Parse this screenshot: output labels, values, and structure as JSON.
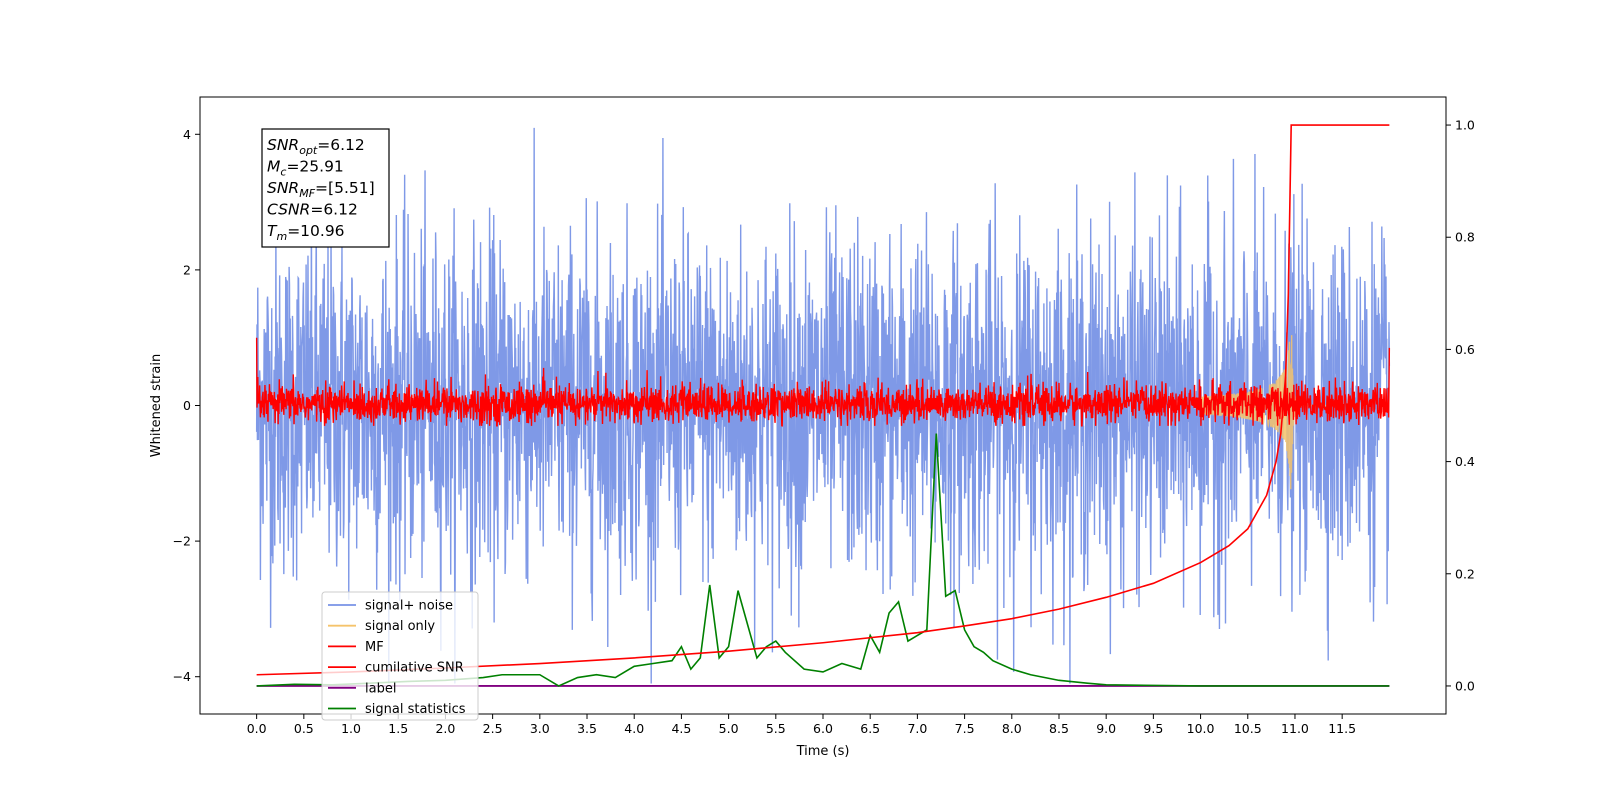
{
  "chart_data": {
    "type": "line",
    "xlabel": "Time (s)",
    "ylabel": "Whitened strain",
    "xlim": [
      -0.6,
      12.6
    ],
    "ylim": [
      -4.55,
      4.55
    ],
    "y2lim": [
      -0.05,
      1.05
    ],
    "x_ticks": [
      "0.0",
      "0.5",
      "1.0",
      "1.5",
      "2.0",
      "2.5",
      "3.0",
      "3.5",
      "4.0",
      "4.5",
      "5.0",
      "5.5",
      "6.0",
      "6.5",
      "7.0",
      "7.5",
      "8.0",
      "8.5",
      "9.0",
      "9.5",
      "10.0",
      "10.5",
      "11.0",
      "11.5"
    ],
    "y_ticks": [
      "−4",
      "−2",
      "0",
      "2",
      "4"
    ],
    "y2_ticks": [
      "0.0",
      "0.2",
      "0.4",
      "0.6",
      "0.8",
      "1.0"
    ],
    "legend_position": "lower-left",
    "legend": [
      "signal+ noise",
      "signal only",
      "MF",
      "cumilative SNR",
      "label",
      "signal statistics"
    ],
    "annotation": [
      {
        "sym": "SNR",
        "sub": "opt",
        "value": "=6.12"
      },
      {
        "sym": "M",
        "sub": "c",
        "value": "=25.91"
      },
      {
        "sym": "SNR",
        "sub": "MF",
        "value": "=[5.51]"
      },
      {
        "sym": "CSNR",
        "sub": "",
        "value": "=6.12"
      },
      {
        "sym": "T",
        "sub": "m",
        "value": "=10.96"
      }
    ],
    "series": [
      {
        "name": "signal+ noise",
        "axis": "left",
        "color": "#7893e6",
        "description": "noise-dominated, amplitude approx ±2 to ±4 over 0–12 s",
        "x_range": [
          0,
          12
        ],
        "y_range": [
          -4.1,
          4.15
        ]
      },
      {
        "name": "signal only",
        "axis": "left",
        "color": "#f5c36b",
        "description": "chirp growing toward merger near 10.96 s",
        "x_range": [
          0,
          12
        ],
        "y_range": [
          -1.4,
          1.4
        ]
      },
      {
        "name": "MF",
        "axis": "left",
        "color": "#ff0000",
        "description": "matched-filter output, approx -0.3 to 0.7",
        "x_range": [
          0,
          12
        ],
        "y_range": [
          -0.3,
          1.0
        ]
      },
      {
        "name": "cumilative SNR",
        "axis": "right",
        "color": "#ff0000",
        "x": [
          0,
          1,
          2,
          3,
          4,
          5,
          6,
          7,
          7.5,
          8,
          8.5,
          9,
          9.5,
          10,
          10.3,
          10.5,
          10.7,
          10.8,
          10.85,
          10.9,
          10.93,
          10.96,
          12
        ],
        "y": [
          0.02,
          0.025,
          0.032,
          0.04,
          0.05,
          0.062,
          0.077,
          0.095,
          0.107,
          0.12,
          0.137,
          0.158,
          0.183,
          0.22,
          0.25,
          0.28,
          0.34,
          0.4,
          0.45,
          0.55,
          0.7,
          1.0,
          1.0
        ]
      },
      {
        "name": "label",
        "axis": "right",
        "color": "#800080",
        "x": [
          0,
          12
        ],
        "y": [
          0.0,
          0.0
        ]
      },
      {
        "name": "signal statistics",
        "axis": "right",
        "color": "#008000",
        "x": [
          0,
          0.4,
          0.8,
          1.2,
          1.6,
          2.0,
          2.4,
          2.6,
          2.8,
          3.0,
          3.2,
          3.4,
          3.6,
          3.8,
          4.0,
          4.2,
          4.4,
          4.5,
          4.6,
          4.7,
          4.8,
          4.9,
          5.0,
          5.1,
          5.2,
          5.3,
          5.4,
          5.5,
          5.6,
          5.8,
          6.0,
          6.2,
          6.4,
          6.5,
          6.6,
          6.7,
          6.8,
          6.9,
          7.0,
          7.1,
          7.2,
          7.3,
          7.4,
          7.5,
          7.6,
          7.7,
          7.8,
          8.0,
          8.2,
          8.5,
          8.8,
          9.0,
          10.0,
          11.0,
          12.0
        ],
        "y": [
          0.0,
          0.003,
          0.002,
          0.005,
          0.008,
          0.01,
          0.015,
          0.02,
          0.02,
          0.02,
          0.0,
          0.015,
          0.02,
          0.015,
          0.035,
          0.04,
          0.045,
          0.07,
          0.03,
          0.05,
          0.18,
          0.05,
          0.07,
          0.17,
          0.11,
          0.05,
          0.07,
          0.08,
          0.06,
          0.03,
          0.025,
          0.04,
          0.03,
          0.09,
          0.06,
          0.13,
          0.15,
          0.08,
          0.09,
          0.1,
          0.45,
          0.16,
          0.17,
          0.1,
          0.07,
          0.06,
          0.045,
          0.03,
          0.02,
          0.01,
          0.005,
          0.002,
          0.0,
          0.0,
          0.0
        ]
      }
    ]
  }
}
